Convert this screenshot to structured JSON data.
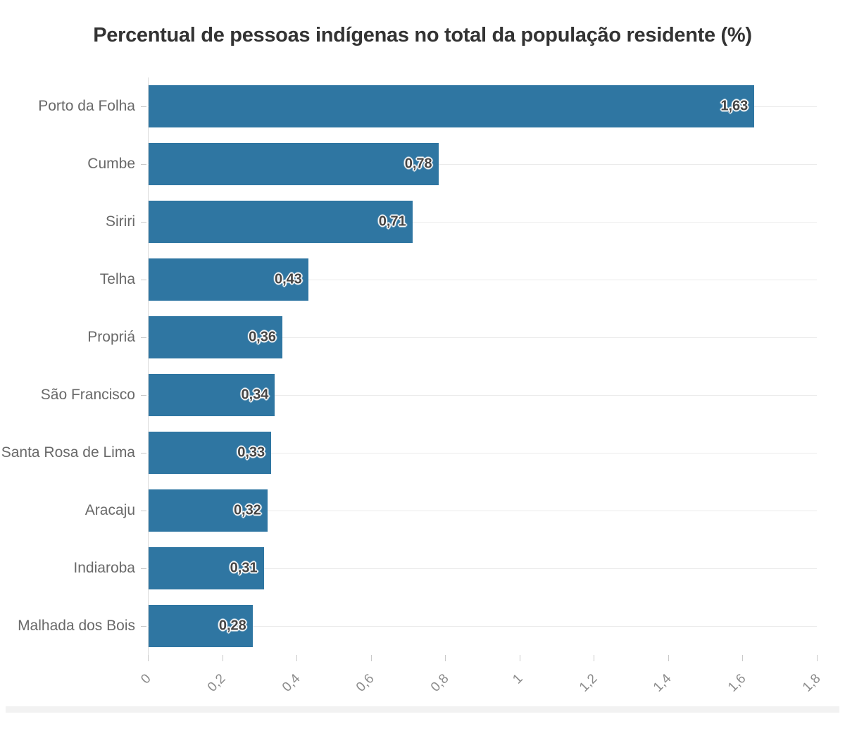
{
  "title": "Percentual de pessoas indígenas no total da população residente (%)",
  "chart_data": {
    "type": "bar",
    "orientation": "horizontal",
    "title": "Percentual de pessoas indígenas no total da população residente (%)",
    "categories": [
      "Porto da Folha",
      "Cumbe",
      "Siriri",
      "Telha",
      "Propriá",
      "São Francisco",
      "Santa Rosa de Lima",
      "Aracaju",
      "Indiaroba",
      "Malhada dos Bois"
    ],
    "values": [
      1.63,
      0.78,
      0.71,
      0.43,
      0.36,
      0.34,
      0.33,
      0.32,
      0.31,
      0.28
    ],
    "value_labels": [
      "1,63",
      "0,78",
      "0,71",
      "0,43",
      "0,36",
      "0,34",
      "0,33",
      "0,32",
      "0,31",
      "0,28"
    ],
    "xlabel": "",
    "ylabel": "",
    "xlim": [
      0,
      1.8
    ],
    "x_ticks": [
      0,
      0.2,
      0.4,
      0.6,
      0.8,
      1,
      1.2,
      1.4,
      1.6,
      1.8
    ],
    "x_tick_labels": [
      "0",
      "0,2",
      "0,4",
      "0,6",
      "0,8",
      "1",
      "1,2",
      "1,4",
      "1,6",
      "1,8"
    ],
    "grid": "light horizontal gridline at each category center",
    "legend": "none",
    "value_label_decimal": "comma"
  },
  "colors": {
    "bar": "#2f76a2",
    "title": "#333333",
    "category_label": "#696969",
    "axis_tick_label": "#8c8c8c",
    "value_label": "#454545",
    "gridline": "#ebebeb",
    "axis_tick_mark": "#c9c9c9",
    "zero_line": "#dcdcdc",
    "footer_divider": "#f2f2f2",
    "background": "#ffffff"
  }
}
